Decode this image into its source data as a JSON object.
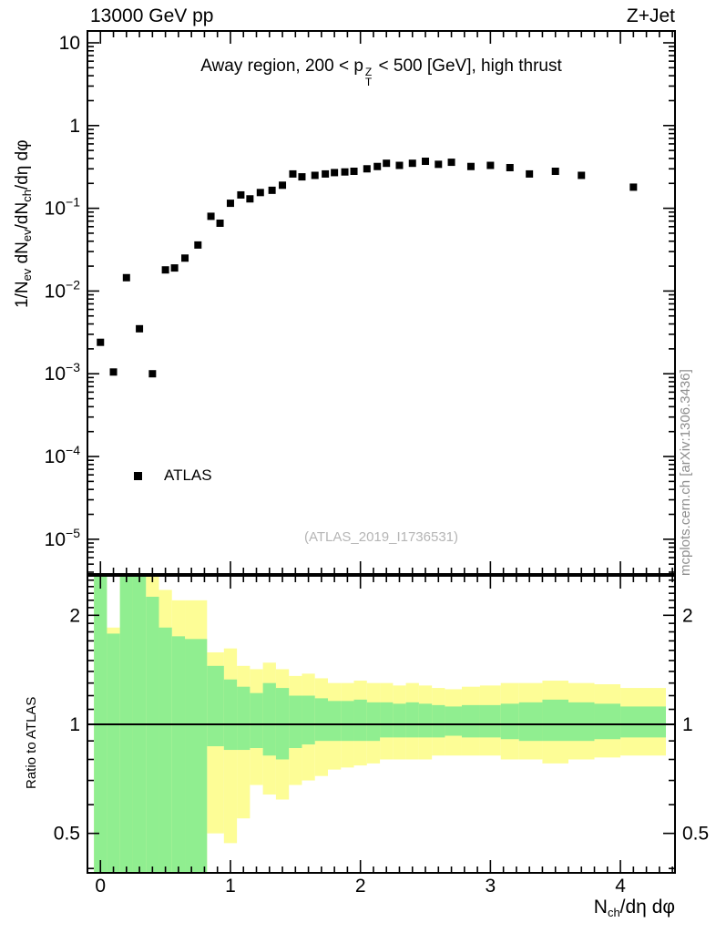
{
  "header": {
    "left": "13000 GeV pp",
    "right": "Z+Jet"
  },
  "labels": {
    "title": {
      "pre": "Away region, 200 < p",
      "sup": "Z",
      "sub": "T",
      "post": " < 500 [GeV], high thrust"
    },
    "ylabel_main": {
      "a": "1/N",
      "b": "ev",
      "c": " dN",
      "d": "ev",
      "e": "/dN",
      "f": "ch",
      "g": "/dη dφ"
    },
    "ylabel_ratio": "Ratio to ATLAS",
    "xlabel": {
      "a": "N",
      "b": "ch",
      "c": "/dη dφ"
    },
    "legend_atlas": "ATLAS",
    "analysis_ref": "(ATLAS_2019_I1736531)",
    "watermark": "mcplots.cern.ch [arXiv:1306.3436]"
  },
  "colors": {
    "marker": "#000000",
    "band_outer": "#fdfd96",
    "band_inner": "#90ee90",
    "frame": "#000000",
    "analysis_ref_text": "#b5b5b5",
    "watermark_text": "#8e8e8e"
  },
  "chart_data": [
    {
      "type": "scatter",
      "panel": "main",
      "title": "Away region, 200 < pT^Z < 500 [GeV], high thrust",
      "ylabel": "1/Nev dNev/dNch/dη dφ",
      "xlabel": "Nch/dη dφ",
      "xscale": "linear",
      "yscale": "log",
      "xlim": [
        -0.1,
        4.42
      ],
      "ylim": [
        3.8e-06,
        13.9
      ],
      "xticks": [
        0,
        1,
        2,
        3,
        4
      ],
      "ytick_exponents": [
        1,
        0,
        -1,
        -2,
        -3,
        -4,
        -5
      ],
      "grid": false,
      "legend_position": "inside-lower-left",
      "series": [
        {
          "name": "ATLAS",
          "marker": "filled-square",
          "color": "#000000",
          "x": [
            0.0,
            0.1,
            0.2,
            0.3,
            0.4,
            0.5,
            0.57,
            0.65,
            0.75,
            0.85,
            0.92,
            1.0,
            1.08,
            1.15,
            1.23,
            1.32,
            1.4,
            1.48,
            1.55,
            1.65,
            1.73,
            1.8,
            1.88,
            1.95,
            2.05,
            2.13,
            2.2,
            2.3,
            2.4,
            2.5,
            2.6,
            2.7,
            2.85,
            3.0,
            3.15,
            3.3,
            3.5,
            3.7,
            4.1
          ],
          "y": [
            0.0024,
            0.00105,
            0.0145,
            0.0035,
            0.001,
            0.018,
            0.019,
            0.025,
            0.036,
            0.08,
            0.066,
            0.115,
            0.145,
            0.13,
            0.155,
            0.165,
            0.19,
            0.26,
            0.24,
            0.25,
            0.26,
            0.27,
            0.275,
            0.28,
            0.3,
            0.32,
            0.35,
            0.33,
            0.35,
            0.37,
            0.34,
            0.36,
            0.32,
            0.33,
            0.31,
            0.26,
            0.28,
            0.25,
            0.18
          ]
        }
      ]
    },
    {
      "type": "band-ratio",
      "panel": "ratio",
      "ylabel": "Ratio to ATLAS",
      "xlabel": "Nch/dη dφ",
      "yscale": "log",
      "xlim": [
        -0.1,
        4.42
      ],
      "ylim": [
        0.389,
        2.57
      ],
      "xticks": [
        0,
        1,
        2,
        3,
        4
      ],
      "yticks": [
        0.5,
        1,
        2
      ],
      "yticks_minor": [
        0.4,
        0.6,
        0.7,
        0.8,
        0.9,
        1.1,
        1.2,
        1.3,
        1.4,
        1.5,
        1.6,
        1.7,
        1.8,
        1.9,
        2.1,
        2.2,
        2.3,
        2.4,
        2.5
      ],
      "ref_y": 1,
      "bands": {
        "outer": "total-uncertainty",
        "inner": "statistical-uncertainty"
      },
      "bins": [
        {
          "x": [
            -0.05,
            0.05
          ],
          "outer": [
            0.38,
            2.6
          ],
          "inner": [
            0.38,
            2.6
          ]
        },
        {
          "x": [
            0.05,
            0.15
          ],
          "outer": [
            0.38,
            1.85
          ],
          "inner": [
            0.38,
            1.78
          ]
        },
        {
          "x": [
            0.15,
            0.25
          ],
          "outer": [
            0.38,
            2.6
          ],
          "inner": [
            0.38,
            2.6
          ]
        },
        {
          "x": [
            0.25,
            0.35
          ],
          "outer": [
            0.38,
            2.6
          ],
          "inner": [
            0.38,
            2.6
          ]
        },
        {
          "x": [
            0.35,
            0.45
          ],
          "outer": [
            0.38,
            2.6
          ],
          "inner": [
            0.38,
            2.25
          ]
        },
        {
          "x": [
            0.45,
            0.55
          ],
          "outer": [
            0.38,
            2.35
          ],
          "inner": [
            0.38,
            1.85
          ]
        },
        {
          "x": [
            0.55,
            0.65
          ],
          "outer": [
            0.38,
            2.2
          ],
          "inner": [
            0.38,
            1.75
          ]
        },
        {
          "x": [
            0.65,
            0.82
          ],
          "outer": [
            0.38,
            2.2
          ],
          "inner": [
            0.38,
            1.72
          ]
        },
        {
          "x": [
            0.82,
            0.95
          ],
          "outer": [
            0.5,
            1.58
          ],
          "inner": [
            0.87,
            1.45
          ]
        },
        {
          "x": [
            0.95,
            1.05
          ],
          "outer": [
            0.47,
            1.62
          ],
          "inner": [
            0.85,
            1.33
          ]
        },
        {
          "x": [
            1.05,
            1.15
          ],
          "outer": [
            0.55,
            1.45
          ],
          "inner": [
            0.85,
            1.27
          ]
        },
        {
          "x": [
            1.15,
            1.25
          ],
          "outer": [
            0.68,
            1.42
          ],
          "inner": [
            0.86,
            1.22
          ]
        },
        {
          "x": [
            1.25,
            1.35
          ],
          "outer": [
            0.64,
            1.48
          ],
          "inner": [
            0.82,
            1.3
          ]
        },
        {
          "x": [
            1.35,
            1.45
          ],
          "outer": [
            0.62,
            1.42
          ],
          "inner": [
            0.8,
            1.26
          ]
        },
        {
          "x": [
            1.45,
            1.55
          ],
          "outer": [
            0.68,
            1.36
          ],
          "inner": [
            0.86,
            1.2
          ]
        },
        {
          "x": [
            1.55,
            1.65
          ],
          "outer": [
            0.7,
            1.38
          ],
          "inner": [
            0.88,
            1.2
          ]
        },
        {
          "x": [
            1.65,
            1.75
          ],
          "outer": [
            0.72,
            1.34
          ],
          "inner": [
            0.9,
            1.18
          ]
        },
        {
          "x": [
            1.75,
            1.85
          ],
          "outer": [
            0.75,
            1.3
          ],
          "inner": [
            0.9,
            1.16
          ]
        },
        {
          "x": [
            1.85,
            1.95
          ],
          "outer": [
            0.76,
            1.3
          ],
          "inner": [
            0.9,
            1.16
          ]
        },
        {
          "x": [
            1.95,
            2.05
          ],
          "outer": [
            0.77,
            1.32
          ],
          "inner": [
            0.9,
            1.17
          ]
        },
        {
          "x": [
            2.05,
            2.15
          ],
          "outer": [
            0.78,
            1.3
          ],
          "inner": [
            0.9,
            1.15
          ]
        },
        {
          "x": [
            2.15,
            2.25
          ],
          "outer": [
            0.8,
            1.3
          ],
          "inner": [
            0.92,
            1.15
          ]
        },
        {
          "x": [
            2.25,
            2.35
          ],
          "outer": [
            0.8,
            1.28
          ],
          "inner": [
            0.92,
            1.14
          ]
        },
        {
          "x": [
            2.35,
            2.45
          ],
          "outer": [
            0.8,
            1.3
          ],
          "inner": [
            0.92,
            1.15
          ]
        },
        {
          "x": [
            2.45,
            2.55
          ],
          "outer": [
            0.8,
            1.28
          ],
          "inner": [
            0.92,
            1.14
          ]
        },
        {
          "x": [
            2.55,
            2.65
          ],
          "outer": [
            0.82,
            1.26
          ],
          "inner": [
            0.92,
            1.13
          ]
        },
        {
          "x": [
            2.65,
            2.78
          ],
          "outer": [
            0.82,
            1.25
          ],
          "inner": [
            0.93,
            1.12
          ]
        },
        {
          "x": [
            2.78,
            2.92
          ],
          "outer": [
            0.82,
            1.27
          ],
          "inner": [
            0.92,
            1.13
          ]
        },
        {
          "x": [
            2.92,
            3.08
          ],
          "outer": [
            0.82,
            1.28
          ],
          "inner": [
            0.92,
            1.13
          ]
        },
        {
          "x": [
            3.08,
            3.22
          ],
          "outer": [
            0.8,
            1.3
          ],
          "inner": [
            0.91,
            1.14
          ]
        },
        {
          "x": [
            3.22,
            3.4
          ],
          "outer": [
            0.8,
            1.3
          ],
          "inner": [
            0.9,
            1.15
          ]
        },
        {
          "x": [
            3.4,
            3.6
          ],
          "outer": [
            0.78,
            1.32
          ],
          "inner": [
            0.9,
            1.17
          ]
        },
        {
          "x": [
            3.6,
            3.8
          ],
          "outer": [
            0.8,
            1.3
          ],
          "inner": [
            0.9,
            1.15
          ]
        },
        {
          "x": [
            3.8,
            4.0
          ],
          "outer": [
            0.81,
            1.29
          ],
          "inner": [
            0.91,
            1.14
          ]
        },
        {
          "x": [
            4.0,
            4.35
          ],
          "outer": [
            0.82,
            1.26
          ],
          "inner": [
            0.92,
            1.12
          ]
        }
      ]
    }
  ]
}
